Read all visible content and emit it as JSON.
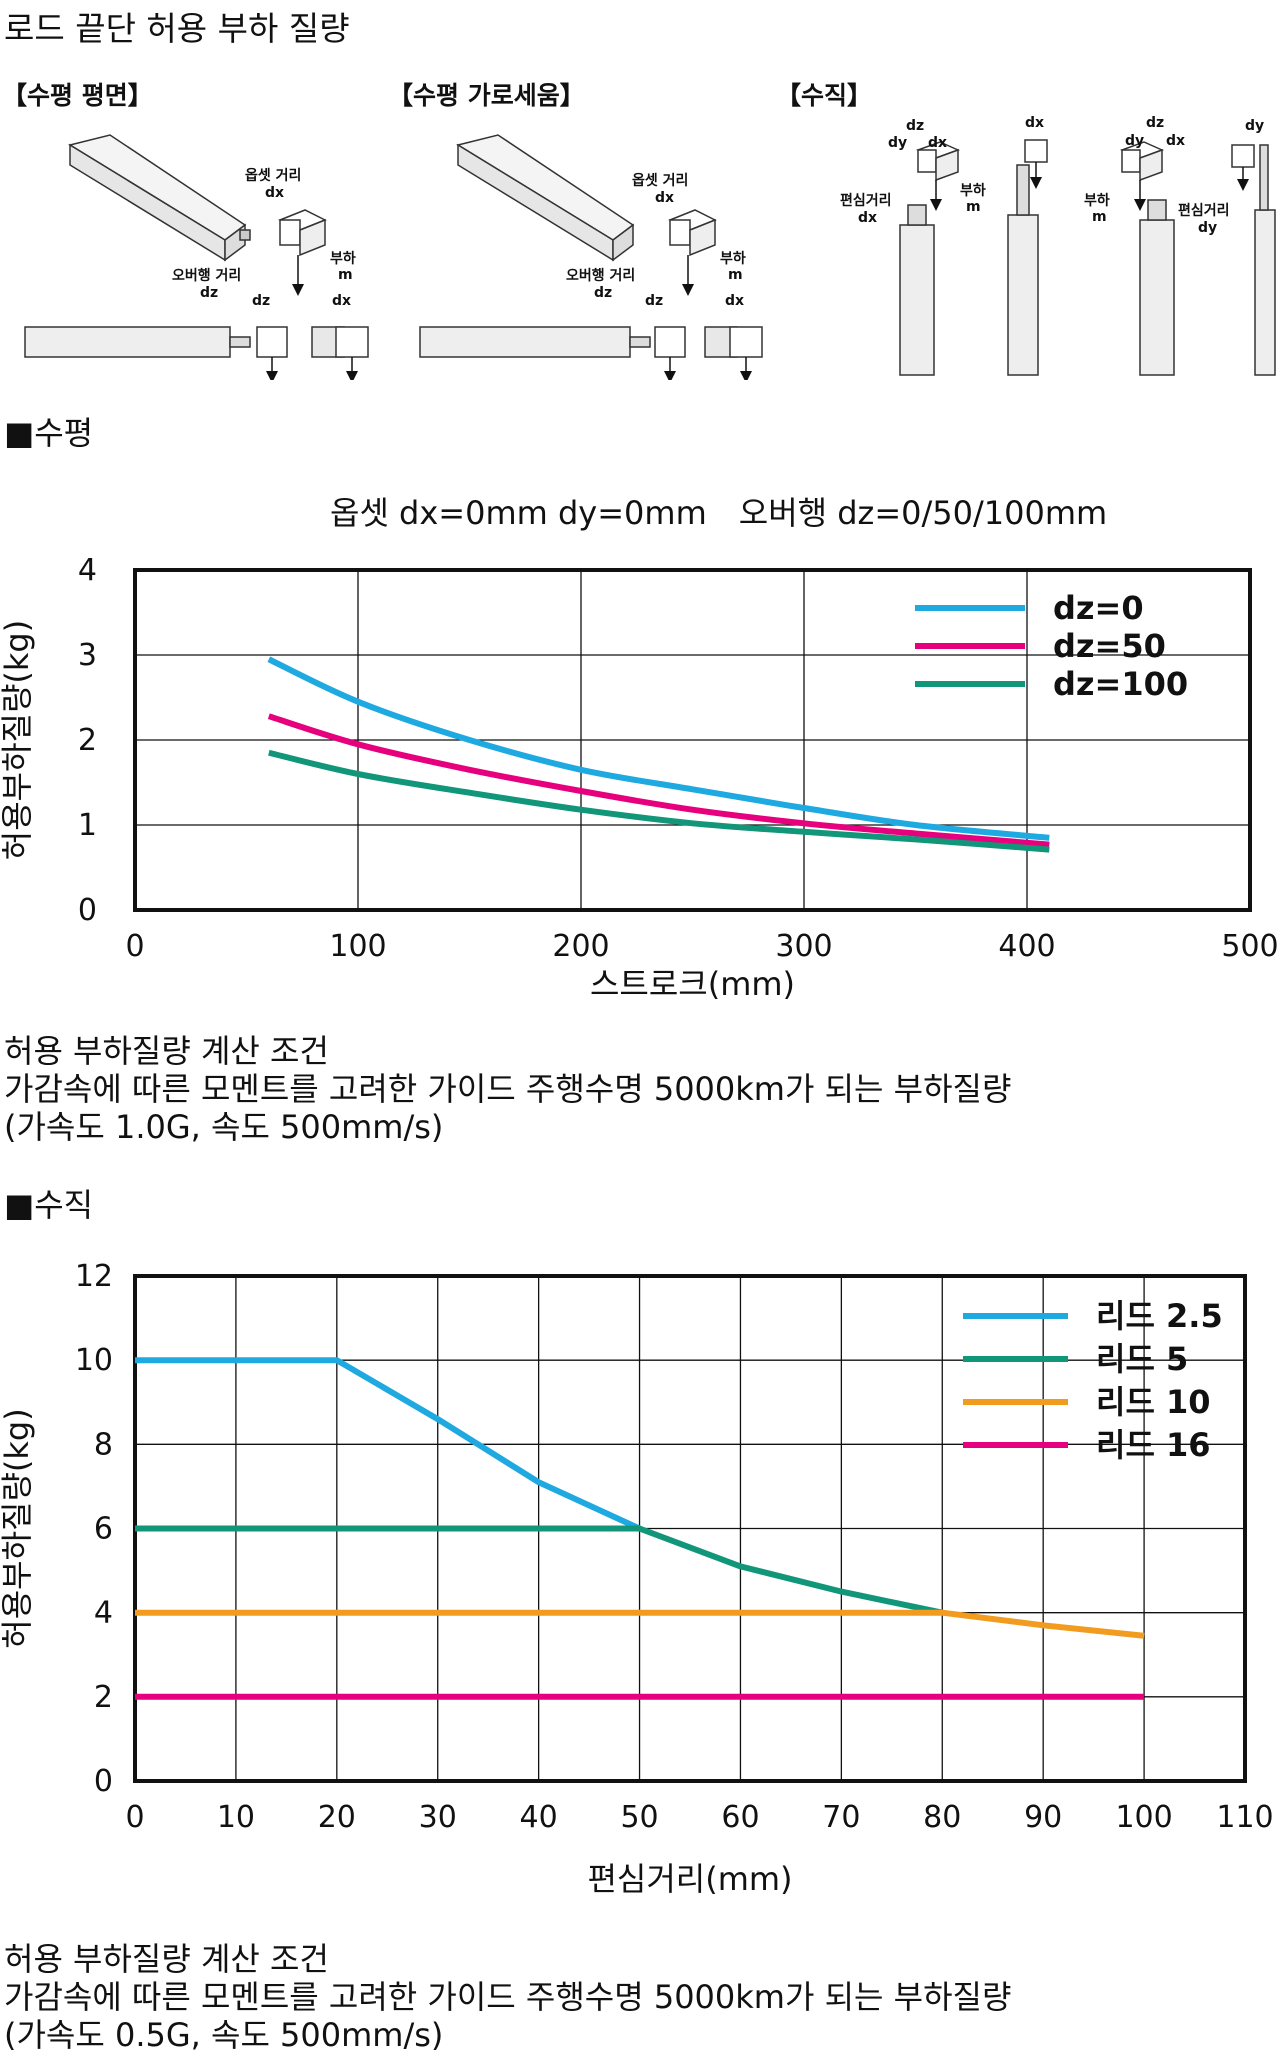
{
  "page": {
    "title": "로드 끝단 허용 부하 질량"
  },
  "diagram": {
    "labels": {
      "horizontal_flat": "【수평 평면】",
      "horizontal_side": "【수평 가로세움】",
      "vertical": "【수직】"
    },
    "annotations": {
      "offset_distance": "옵셋 거리",
      "overhang_distance": "오버행 거리",
      "load": "부하",
      "eccentric_distance": "편심거리",
      "dx": "dx",
      "dy": "dy",
      "dz": "dz",
      "m": "m"
    }
  },
  "horizontal_section": {
    "heading": "■수평",
    "condition_line": "옵셋 dx=0mm dy=0mm　오버행 dz=0/50/100mm",
    "note_lines": [
      "허용 부하질량 계산 조건",
      "가감속에 따른 모멘트를 고려한 가이드 주행수명 5000km가 되는 부하질량",
      "(가속도 1.0G, 속도 500mm/s)"
    ]
  },
  "vertical_section": {
    "heading": "■수직",
    "note_lines": [
      "허용 부하질량 계산 조건",
      "가감속에 따른 모멘트를 고려한 가이드 주행수명 5000km가 되는 부하질량",
      "(가속도 0.5G, 속도 500mm/s)"
    ]
  },
  "colors": {
    "blue": "#1fa9e1",
    "magenta": "#e6007e",
    "green": "#12967a",
    "orange": "#f29c1f"
  },
  "chart_data": [
    {
      "type": "line",
      "xlabel": "스트로크(mm)",
      "ylabel": "허용부하질량(kg)",
      "xlim": [
        0,
        500
      ],
      "ylim": [
        0,
        4
      ],
      "xticks": [
        0,
        100,
        200,
        300,
        400,
        500
      ],
      "yticks": [
        0,
        1,
        2,
        3,
        4
      ],
      "grid": true,
      "legend": "top-right",
      "series": [
        {
          "name": "dz=0",
          "color": "#1fa9e1",
          "x": [
            60,
            100,
            150,
            200,
            250,
            300,
            350,
            410
          ],
          "y": [
            2.95,
            2.45,
            2.0,
            1.65,
            1.42,
            1.2,
            1.0,
            0.85
          ]
        },
        {
          "name": "dz=50",
          "color": "#e6007e",
          "x": [
            60,
            100,
            150,
            200,
            250,
            300,
            350,
            410
          ],
          "y": [
            2.28,
            1.95,
            1.65,
            1.4,
            1.18,
            1.02,
            0.9,
            0.77
          ]
        },
        {
          "name": "dz=100",
          "color": "#12967a",
          "x": [
            60,
            100,
            150,
            200,
            250,
            300,
            350,
            410
          ],
          "y": [
            1.85,
            1.6,
            1.38,
            1.18,
            1.02,
            0.92,
            0.83,
            0.71
          ]
        }
      ]
    },
    {
      "type": "line",
      "xlabel": "편심거리(mm)",
      "ylabel": "허용부하질량(kg)",
      "xlim": [
        0,
        110
      ],
      "ylim": [
        0,
        12
      ],
      "xticks": [
        0,
        10,
        20,
        30,
        40,
        50,
        60,
        70,
        80,
        90,
        100,
        110
      ],
      "yticks": [
        0,
        2,
        4,
        6,
        8,
        10,
        12
      ],
      "grid": true,
      "legend": "top-right",
      "series": [
        {
          "name": "리드 2.5",
          "color": "#1fa9e1",
          "x": [
            0,
            20,
            30,
            40,
            50
          ],
          "y": [
            10,
            10,
            8.6,
            7.1,
            6.0
          ]
        },
        {
          "name": "리드 5",
          "color": "#12967a",
          "x": [
            0,
            50,
            60,
            70,
            80
          ],
          "y": [
            6,
            6,
            5.1,
            4.5,
            4.0
          ]
        },
        {
          "name": "리드 10",
          "color": "#f29c1f",
          "x": [
            0,
            80,
            90,
            100
          ],
          "y": [
            4,
            4,
            3.7,
            3.45
          ]
        },
        {
          "name": "리드 16",
          "color": "#e6007e",
          "x": [
            0,
            100
          ],
          "y": [
            2,
            2
          ]
        }
      ]
    }
  ]
}
